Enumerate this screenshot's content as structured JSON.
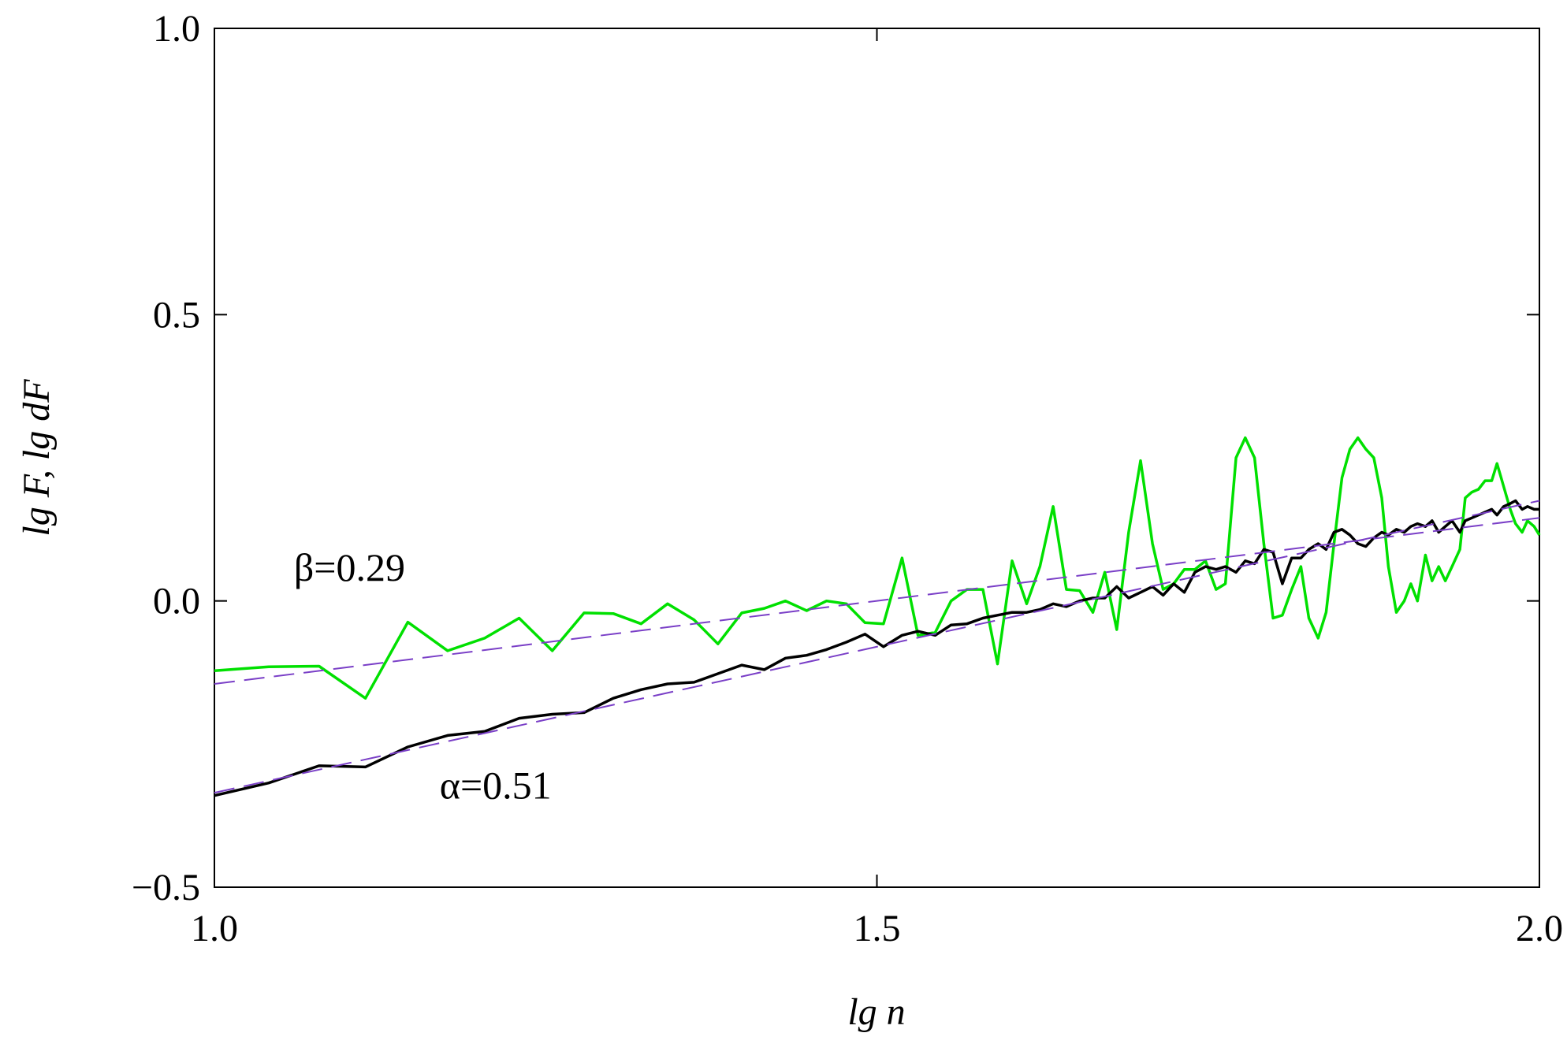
{
  "chart_data": {
    "type": "line",
    "xlabel": "lg n",
    "ylabel": "lg F, lg dF",
    "xlim": [
      1.0,
      2.0
    ],
    "ylim": [
      -0.5,
      1.0
    ],
    "x_ticks": [
      1.0,
      1.5,
      2.0
    ],
    "x_tick_labels": [
      "1.0",
      "1.5",
      "2.0"
    ],
    "y_ticks": [
      -0.5,
      0.0,
      0.5,
      1.0
    ],
    "y_tick_labels": [
      "−0.5",
      "0.0",
      "0.5",
      "1.0"
    ],
    "grid": false,
    "legend": "none",
    "annotations": [
      {
        "text": "β=0.29",
        "x": 1.06,
        "y": 0.035
      },
      {
        "text": "α=0.51",
        "x": 1.17,
        "y": -0.345
      }
    ],
    "series": [
      {
        "color": "#00e000",
        "style": "solid",
        "x": [
          1.0,
          1.041,
          1.079,
          1.114,
          1.146,
          1.176,
          1.204,
          1.23,
          1.255,
          1.279,
          1.301,
          1.322,
          1.342,
          1.362,
          1.38,
          1.398,
          1.415,
          1.431,
          1.447,
          1.462,
          1.477,
          1.491,
          1.505,
          1.519,
          1.531,
          1.544,
          1.556,
          1.568,
          1.58,
          1.591,
          1.602,
          1.613,
          1.623,
          1.633,
          1.643,
          1.653,
          1.663,
          1.672,
          1.681,
          1.69,
          1.699,
          1.708,
          1.716,
          1.724,
          1.732,
          1.74,
          1.748,
          1.756,
          1.763,
          1.771,
          1.778,
          1.785,
          1.792,
          1.799,
          1.806,
          1.813,
          1.82,
          1.826,
          1.833,
          1.839,
          1.845,
          1.851,
          1.857,
          1.863,
          1.869,
          1.875,
          1.881,
          1.886,
          1.892,
          1.898,
          1.903,
          1.908,
          1.914,
          1.919,
          1.924,
          1.929,
          1.934,
          1.94,
          1.944,
          1.949,
          1.954,
          1.959,
          1.964,
          1.968,
          1.973,
          1.978,
          1.982,
          1.987,
          1.991,
          1.996,
          2.0
        ],
        "y": [
          -0.122,
          -0.115,
          -0.114,
          -0.17,
          -0.037,
          -0.087,
          -0.065,
          -0.03,
          -0.087,
          -0.021,
          -0.022,
          -0.04,
          -0.005,
          -0.033,
          -0.075,
          -0.021,
          -0.013,
          0.0,
          -0.017,
          0.0,
          -0.005,
          -0.038,
          -0.04,
          0.075,
          -0.06,
          -0.055,
          0.0,
          0.02,
          0.02,
          -0.11,
          0.07,
          -0.005,
          0.06,
          0.165,
          0.02,
          0.018,
          -0.02,
          0.05,
          -0.05,
          0.12,
          0.245,
          0.1,
          0.02,
          0.03,
          0.055,
          0.055,
          0.07,
          0.02,
          0.03,
          0.25,
          0.285,
          0.25,
          0.1,
          -0.03,
          -0.025,
          0.02,
          0.06,
          -0.03,
          -0.065,
          -0.02,
          0.1,
          0.215,
          0.265,
          0.285,
          0.265,
          0.25,
          0.18,
          0.06,
          -0.02,
          0.0,
          0.03,
          0.0,
          0.08,
          0.035,
          0.06,
          0.035,
          0.06,
          0.09,
          0.18,
          0.19,
          0.195,
          0.21,
          0.21,
          0.24,
          0.2,
          0.16,
          0.135,
          0.12,
          0.14,
          0.13,
          0.115
        ]
      },
      {
        "color": "#000000",
        "style": "solid",
        "x": [
          1.0,
          1.041,
          1.079,
          1.114,
          1.146,
          1.176,
          1.204,
          1.23,
          1.255,
          1.279,
          1.301,
          1.322,
          1.342,
          1.362,
          1.38,
          1.398,
          1.415,
          1.431,
          1.447,
          1.462,
          1.477,
          1.491,
          1.505,
          1.519,
          1.531,
          1.544,
          1.556,
          1.568,
          1.58,
          1.591,
          1.602,
          1.613,
          1.623,
          1.633,
          1.643,
          1.653,
          1.663,
          1.672,
          1.681,
          1.69,
          1.699,
          1.708,
          1.716,
          1.724,
          1.732,
          1.74,
          1.748,
          1.756,
          1.763,
          1.771,
          1.778,
          1.785,
          1.792,
          1.799,
          1.806,
          1.813,
          1.82,
          1.826,
          1.833,
          1.839,
          1.845,
          1.851,
          1.857,
          1.863,
          1.869,
          1.875,
          1.881,
          1.886,
          1.892,
          1.898,
          1.903,
          1.908,
          1.914,
          1.919,
          1.924,
          1.929,
          1.934,
          1.94,
          1.944,
          1.949,
          1.954,
          1.959,
          1.964,
          1.968,
          1.973,
          1.978,
          1.982,
          1.987,
          1.991,
          1.996,
          2.0
        ],
        "y": [
          -0.34,
          -0.318,
          -0.288,
          -0.29,
          -0.255,
          -0.235,
          -0.228,
          -0.205,
          -0.198,
          -0.195,
          -0.17,
          -0.155,
          -0.145,
          -0.142,
          -0.127,
          -0.112,
          -0.12,
          -0.1,
          -0.095,
          -0.085,
          -0.072,
          -0.058,
          -0.08,
          -0.06,
          -0.053,
          -0.06,
          -0.042,
          -0.04,
          -0.03,
          -0.025,
          -0.02,
          -0.02,
          -0.015,
          -0.005,
          -0.01,
          0.0,
          0.005,
          0.005,
          0.025,
          0.005,
          0.015,
          0.025,
          0.01,
          0.03,
          0.015,
          0.05,
          0.06,
          0.055,
          0.06,
          0.05,
          0.07,
          0.065,
          0.09,
          0.085,
          0.03,
          0.075,
          0.075,
          0.09,
          0.1,
          0.09,
          0.12,
          0.125,
          0.115,
          0.1,
          0.095,
          0.11,
          0.12,
          0.115,
          0.125,
          0.12,
          0.13,
          0.135,
          0.13,
          0.14,
          0.12,
          0.13,
          0.14,
          0.12,
          0.14,
          0.145,
          0.15,
          0.155,
          0.16,
          0.15,
          0.165,
          0.17,
          0.175,
          0.16,
          0.165,
          0.16,
          0.16
        ]
      },
      {
        "color": "#7a3fc7",
        "style": "dashed",
        "x": [
          1.0,
          2.0
        ],
        "y": [
          -0.145,
          0.145
        ]
      },
      {
        "color": "#7a3fc7",
        "style": "dashed",
        "x": [
          1.0,
          2.0
        ],
        "y": [
          -0.335,
          0.175
        ]
      }
    ]
  }
}
